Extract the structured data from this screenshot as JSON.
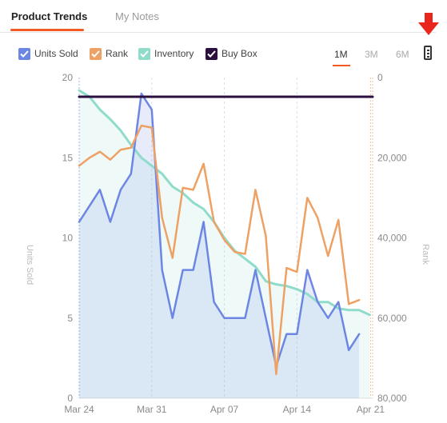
{
  "tabs": {
    "active": "Product Trends",
    "inactive": "My Notes"
  },
  "legend": [
    {
      "label": "Units Sold",
      "color": "#6d86e3"
    },
    {
      "label": "Rank",
      "color": "#eea164"
    },
    {
      "label": "Inventory",
      "color": "#8fdccb"
    },
    {
      "label": "Buy Box",
      "color": "#2b0f3f"
    }
  ],
  "ranges": [
    "1M",
    "3M",
    "6M"
  ],
  "selected_range": "1M",
  "icons": {
    "download": "csv-download-icon",
    "arrow": "red-down-arrow-icon"
  },
  "colors": {
    "accent": "#f15a22",
    "arrow": "#e8261c"
  },
  "chart_data": {
    "type": "line",
    "x_ticks": [
      "Mar 24",
      "Mar 31",
      "Apr 07",
      "Apr 14",
      "Apr 21"
    ],
    "x_domain": [
      0,
      28.3
    ],
    "y_left": {
      "label": "Units Sold",
      "ticks": [
        "20",
        "15",
        "10",
        "5",
        "0"
      ],
      "range": [
        0,
        20
      ]
    },
    "y_right": {
      "label": "Rank",
      "ticks": [
        "0",
        "20,000",
        "40,000",
        "60,000",
        "80,000"
      ],
      "range": [
        0,
        80000
      ],
      "inverted": true
    },
    "grid": "vertical dashed",
    "series": [
      {
        "name": "Units Sold",
        "axis": "left",
        "fill": true,
        "x": [
          0,
          1,
          2,
          3,
          4,
          5,
          6,
          7,
          8,
          9,
          10,
          11,
          12,
          13,
          14,
          15,
          16,
          17,
          18,
          19,
          20,
          21,
          22,
          23,
          24,
          25,
          26,
          27
        ],
        "y": [
          11,
          12,
          13,
          11,
          13,
          14,
          19,
          18,
          8,
          5,
          8,
          8,
          11,
          6,
          5,
          5,
          5,
          8,
          5,
          2,
          4,
          4,
          8,
          6,
          5,
          6,
          3,
          4
        ]
      },
      {
        "name": "Rank",
        "axis": "right",
        "x": [
          0,
          1,
          2,
          3,
          4,
          5,
          6,
          7,
          8,
          9,
          10,
          11,
          12,
          13,
          14,
          15,
          16,
          17,
          18,
          19,
          20,
          21,
          22,
          23,
          24,
          25,
          26,
          27
        ],
        "y": [
          22000,
          20000,
          18500,
          20500,
          18000,
          17500,
          12000,
          12500,
          35000,
          45000,
          27500,
          28000,
          21500,
          36000,
          40500,
          43500,
          44000,
          28000,
          39500,
          74000,
          47500,
          48500,
          30000,
          35000,
          44500,
          35500,
          56500,
          55500
        ]
      },
      {
        "name": "Inventory",
        "axis": "left",
        "fill": true,
        "x": [
          0,
          1,
          2,
          3,
          4,
          5,
          6,
          7,
          8,
          9,
          10,
          11,
          12,
          13,
          14,
          15,
          16,
          17,
          18,
          19,
          20,
          21,
          22,
          23,
          24,
          25,
          26,
          27,
          28
        ],
        "y": [
          19.2,
          18.8,
          18,
          17.4,
          16.7,
          15.8,
          15,
          14.5,
          14,
          13.2,
          12.8,
          12.2,
          11.8,
          11,
          10,
          9.2,
          8.7,
          8.2,
          7.3,
          7.1,
          7,
          6.8,
          6.5,
          6,
          6,
          5.6,
          5.5,
          5.5,
          5.2
        ]
      },
      {
        "name": "Buy Box",
        "axis": "left",
        "x": [
          0,
          28.3
        ],
        "y": [
          18.8,
          18.8
        ]
      }
    ]
  }
}
